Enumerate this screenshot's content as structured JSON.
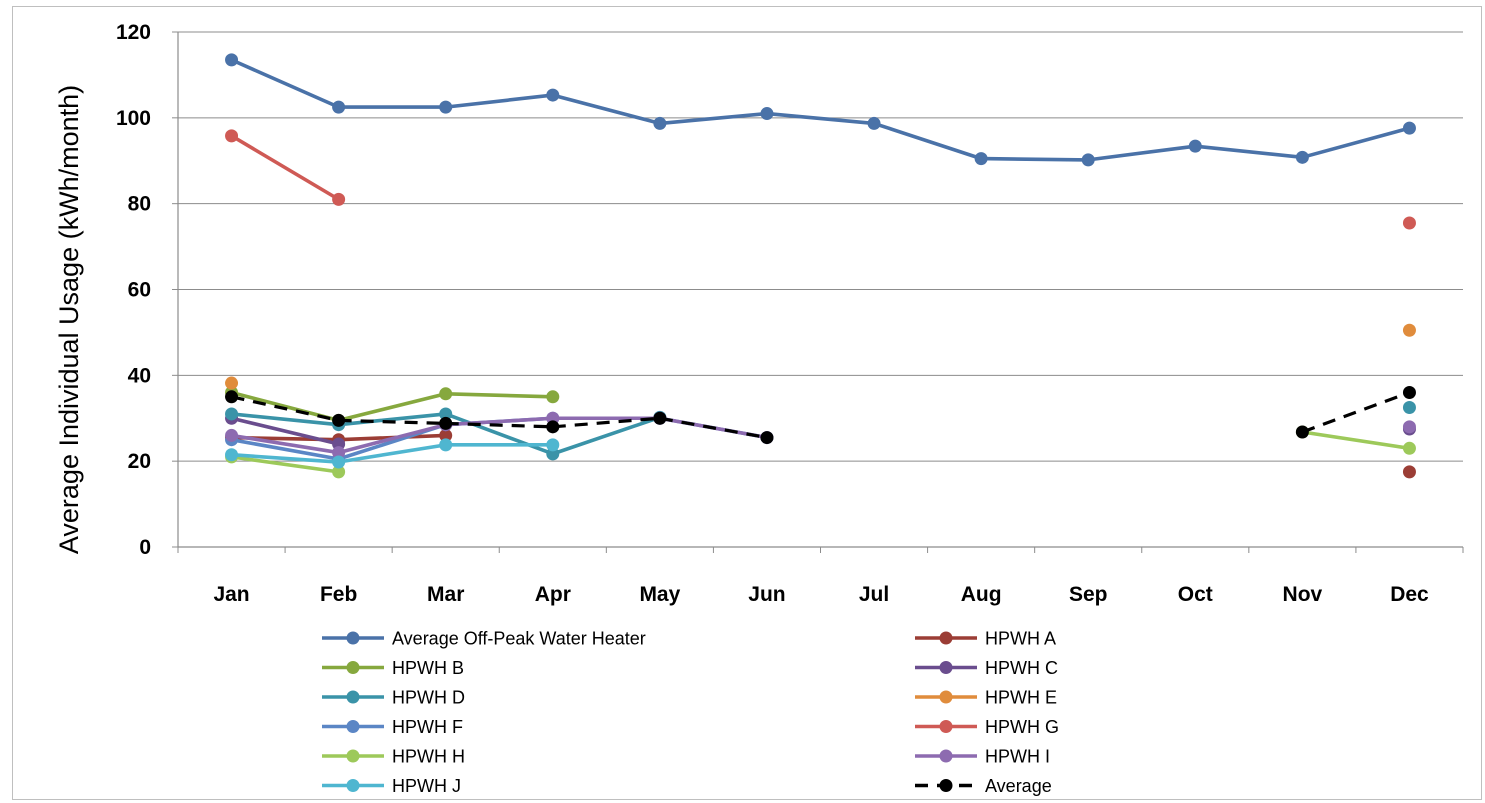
{
  "chart_data": {
    "type": "line",
    "title": "",
    "xlabel": "",
    "ylabel": "Average Individual  Usage (kWh/month)",
    "ylim": [
      0,
      120
    ],
    "yticks": [
      0,
      20,
      40,
      60,
      80,
      100,
      120
    ],
    "grid": "horizontal",
    "legend_position": "bottom",
    "categories": [
      "Jan",
      "Feb",
      "Mar",
      "Apr",
      "May",
      "Jun",
      "Jul",
      "Aug",
      "Sep",
      "Oct",
      "Nov",
      "Dec"
    ],
    "series": [
      {
        "name": "Average Off-Peak Water Heater",
        "color": "#4a72a8",
        "dashed": false,
        "values": [
          113.5,
          102.5,
          102.5,
          105.3,
          98.7,
          101,
          98.7,
          90.5,
          90.2,
          93.4,
          90.8,
          97.6
        ]
      },
      {
        "name": "HPWH A",
        "color": "#9b3d35",
        "dashed": false,
        "values": [
          25.5,
          25,
          26,
          null,
          null,
          null,
          null,
          null,
          null,
          null,
          null,
          17.5
        ]
      },
      {
        "name": "HPWH B",
        "color": "#86a83e",
        "dashed": false,
        "values": [
          36,
          29.5,
          35.7,
          35,
          null,
          null,
          null,
          null,
          null,
          null,
          null,
          null
        ]
      },
      {
        "name": "HPWH C",
        "color": "#6a4d8e",
        "dashed": false,
        "values": [
          30,
          24,
          null,
          null,
          null,
          null,
          null,
          null,
          null,
          null,
          null,
          27.5
        ]
      },
      {
        "name": "HPWH D",
        "color": "#3a93a8",
        "dashed": false,
        "values": [
          31,
          28.5,
          31,
          21.7,
          30.2,
          null,
          null,
          null,
          null,
          null,
          null,
          32.5
        ]
      },
      {
        "name": "HPWH E",
        "color": "#e08c3c",
        "dashed": false,
        "values": [
          38.2,
          null,
          null,
          null,
          null,
          null,
          null,
          null,
          null,
          null,
          null,
          50.5
        ]
      },
      {
        "name": "HPWH F",
        "color": "#5b86c5",
        "dashed": false,
        "values": [
          25,
          20.5,
          28.5,
          30,
          30,
          25.5,
          null,
          null,
          null,
          null,
          null,
          null
        ]
      },
      {
        "name": "HPWH G",
        "color": "#cf5a55",
        "dashed": false,
        "values": [
          95.8,
          81,
          null,
          null,
          null,
          null,
          null,
          null,
          null,
          null,
          null,
          75.5
        ]
      },
      {
        "name": "HPWH H",
        "color": "#9dc95a",
        "dashed": false,
        "values": [
          21,
          17.5,
          null,
          null,
          null,
          null,
          null,
          null,
          null,
          null,
          26.8,
          23
        ]
      },
      {
        "name": "HPWH I",
        "color": "#8d6bb0",
        "dashed": false,
        "values": [
          26,
          22,
          28.5,
          30,
          30,
          25.5,
          null,
          null,
          null,
          null,
          null,
          28
        ]
      },
      {
        "name": "HPWH J",
        "color": "#4fb6d0",
        "dashed": false,
        "values": [
          21.5,
          19.8,
          23.8,
          23.8,
          null,
          null,
          null,
          null,
          null,
          null,
          null,
          null
        ]
      },
      {
        "name": "Average",
        "color": "#000000",
        "dashed": true,
        "values": [
          35,
          29.5,
          28.8,
          28,
          30,
          25.5,
          null,
          null,
          null,
          null,
          26.8,
          36
        ]
      }
    ]
  }
}
